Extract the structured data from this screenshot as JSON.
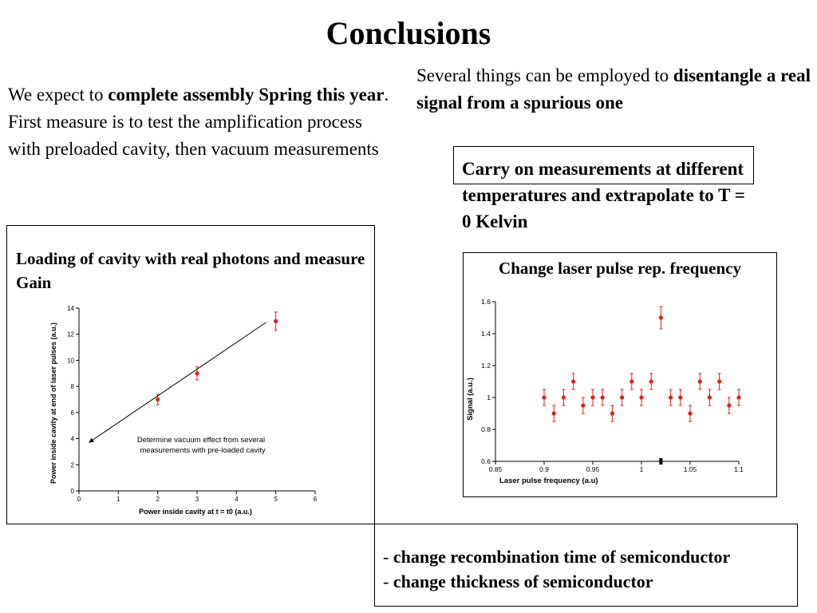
{
  "title": "Conclusions",
  "left_text": {
    "part1": "We expect to ",
    "bold": "complete assembly Spring this year",
    "part2": ". First measure is to test the amplification process with preloaded cavity, then vacuum measurements"
  },
  "right_text": {
    "part1": "Several things can be employed to ",
    "bold": "disentangle a real signal from a spurious one"
  },
  "temperature_box": "Carry on measurements at different temperatures and extrapolate to T = 0 Kelvin",
  "gain_box_title": "Loading of cavity with real photons and measure Gain",
  "frequency_box_title": "Change laser pulse rep. frequency",
  "semiconductor_items": [
    {
      "prefix": "- ",
      "text": "change recombination time of semiconductor"
    },
    {
      "prefix": "- ",
      "text": "change thickness of semiconductor"
    }
  ],
  "colors": {
    "points": "#e0201b",
    "text": "#000000"
  },
  "chart_data": [
    {
      "type": "scatter",
      "xlabel": "Power inside cavity at t = t0   (a.u.)",
      "ylabel": "Power inside cavity at end of laser pulses (a.u.)",
      "xlim": [
        0,
        6
      ],
      "ylim": [
        0,
        14
      ],
      "xticks": [
        "0",
        "1",
        "2",
        "3",
        "4",
        "5",
        "6"
      ],
      "yticks": [
        "0",
        "2",
        "4",
        "6",
        "8",
        "10",
        "12",
        "14"
      ],
      "x": [
        2,
        3,
        5
      ],
      "y": [
        7,
        9,
        13
      ],
      "yerr": [
        0.4,
        0.5,
        0.7
      ],
      "fit_line": {
        "x": [
          0.25,
          4.75
        ],
        "y": [
          3.7,
          12.9
        ]
      },
      "annotation": [
        "Determine vacuum effect from several",
        "measurements with pre-loaded cavity"
      ]
    },
    {
      "type": "scatter",
      "xlabel": "Laser pulse frequency (a.u)",
      "ylabel": "Signal (a.u.)",
      "xlim": [
        0.85,
        1.1
      ],
      "ylim": [
        0.6,
        1.6
      ],
      "xticks": [
        "0.85",
        "0.9",
        "0.95",
        "1",
        "1.05",
        "1.1"
      ],
      "yticks": [
        "0.6",
        "0.8",
        "1",
        "1.2",
        "1.4",
        "1.6"
      ],
      "x": [
        0.9,
        0.91,
        0.92,
        0.93,
        0.94,
        0.95,
        0.96,
        0.97,
        0.98,
        0.99,
        1.0,
        1.01,
        1.02,
        1.03,
        1.04,
        1.05,
        1.06,
        1.07,
        1.08,
        1.09,
        1.1
      ],
      "y": [
        1.0,
        0.9,
        1.0,
        1.1,
        0.95,
        1.0,
        1.0,
        0.9,
        1.0,
        1.1,
        1.0,
        1.1,
        1.5,
        1.0,
        1.0,
        0.9,
        1.1,
        1.0,
        1.1,
        0.95,
        1.0
      ],
      "yerr": [
        0.05,
        0.05,
        0.05,
        0.05,
        0.05,
        0.05,
        0.05,
        0.05,
        0.05,
        0.05,
        0.05,
        0.05,
        0.07,
        0.05,
        0.05,
        0.05,
        0.05,
        0.05,
        0.05,
        0.05,
        0.05
      ],
      "marker_x": 1.02
    }
  ]
}
